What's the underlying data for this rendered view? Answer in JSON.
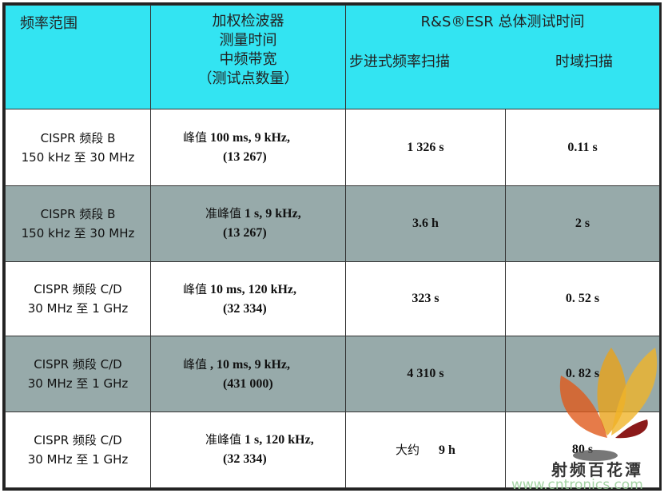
{
  "header": {
    "col1": "频率范围",
    "col2": [
      "加权检波器",
      "测量时间",
      "中频带宽",
      "（测试点数量）"
    ],
    "group": "R&S®ESR 总体测试时间",
    "col3": "步进式频率扫描",
    "col4": "时域扫描"
  },
  "rows": [
    {
      "band": [
        "CISPR 频段 B",
        "150 kHz 至 30 MHz"
      ],
      "detector": "峰值",
      "params": "100 ms, 9 kHz,",
      "points": "(13 267)",
      "stepped": "1 326 s",
      "stepped_prefix": "",
      "time_domain": "0.11 s"
    },
    {
      "band": [
        "CISPR 频段 B",
        "150 kHz 至 30 MHz"
      ],
      "detector": "准峰值",
      "params": "1 s, 9 kHz,",
      "points": "(13 267)",
      "stepped": "3.6 h",
      "stepped_prefix": "",
      "time_domain": "2 s"
    },
    {
      "band": [
        "CISPR 频段 C/D",
        "30 MHz 至 1 GHz"
      ],
      "detector": "峰值",
      "params": "10 ms, 120 kHz,",
      "points": "(32 334)",
      "stepped": "323 s",
      "stepped_prefix": "",
      "time_domain": "0. 52 s"
    },
    {
      "band": [
        "CISPR 频段 C/D",
        "30 MHz 至 1 GHz"
      ],
      "detector": "峰值",
      "params": ", 10 ms, 9 kHz,",
      "points": "(431 000)",
      "stepped": "4 310 s",
      "stepped_prefix": "",
      "time_domain": "0. 82 s"
    },
    {
      "band": [
        "CISPR 频段 C/D",
        "30 MHz 至 1 GHz"
      ],
      "detector": "准峰值",
      "params": "1 s, 120 kHz,",
      "points": "(32 334)",
      "stepped": "9 h",
      "stepped_prefix": "大约",
      "time_domain": "80 s"
    }
  ],
  "watermark": {
    "text": "射频百花潭",
    "url": "www.cntronics.com"
  },
  "colors": {
    "header": "#33E4F2",
    "gray_row": "#97AAAA"
  }
}
